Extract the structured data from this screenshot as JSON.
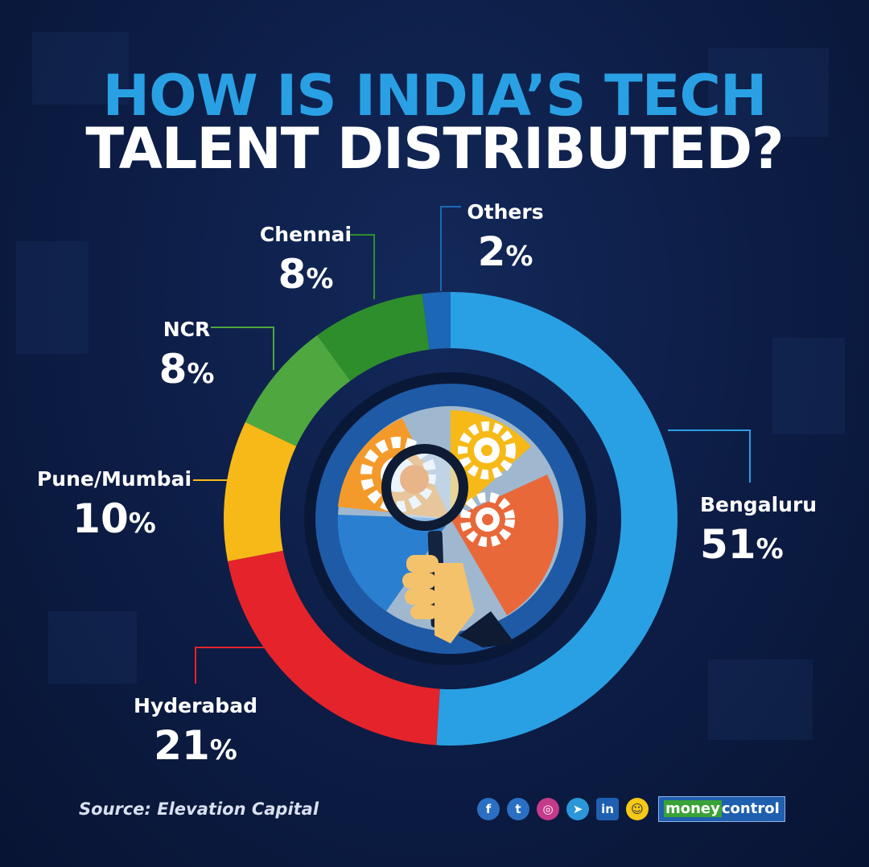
{
  "title_line1": "HOW IS INDIA’S TECH",
  "title_line2": "TALENT DISTRIBUTED?",
  "chart_data": {
    "type": "pie",
    "donut": true,
    "slices": [
      {
        "label": "Bengaluru",
        "value": 51,
        "display": "51",
        "color": "#2aa0e4"
      },
      {
        "label": "Hyderabad",
        "value": 21,
        "display": "21",
        "color": "#e5232b"
      },
      {
        "label": "Pune/Mumbai",
        "value": 10,
        "display": "10",
        "color": "#f6b917"
      },
      {
        "label": "NCR",
        "value": 8,
        "display": "8",
        "color": "#4ea83f"
      },
      {
        "label": "Chennai",
        "value": 8,
        "display": "8",
        "color": "#2f8e2c"
      },
      {
        "label": "Others",
        "value": 2,
        "display": "2",
        "color": "#1c67b6"
      }
    ],
    "unit": "%"
  },
  "footer": {
    "source": "Source: Elevation Capital",
    "social_icons": [
      "facebook-icon",
      "twitter-icon",
      "instagram-icon",
      "telegram-icon",
      "linkedin-icon",
      "snapchat-icon"
    ],
    "brand_part1": "money",
    "brand_part2": "control"
  }
}
